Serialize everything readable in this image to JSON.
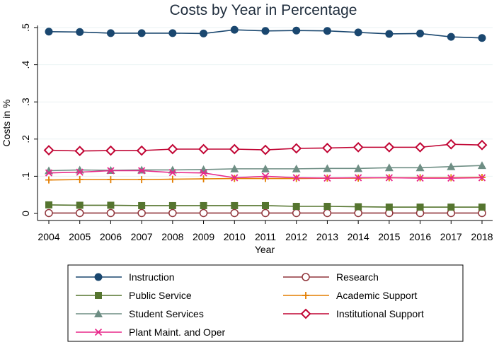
{
  "chart_data": {
    "type": "line",
    "title": "Costs by Year in Percentage",
    "xlabel": "Year",
    "ylabel": "Costs in %",
    "x": [
      "2004",
      "2005",
      "2006",
      "2007",
      "2008",
      "2009",
      "2010",
      "2011",
      "2012",
      "2013",
      "2014",
      "2015",
      "2016",
      "2017",
      "2018"
    ],
    "ylim": [
      0,
      0.5
    ],
    "yticks": [
      0,
      0.1,
      0.2,
      0.3,
      0.4,
      0.5
    ],
    "ytick_labels": [
      "0",
      ".1",
      ".2",
      ".3",
      ".4",
      ".5"
    ],
    "grid": true,
    "legend_position": "bottom",
    "series": [
      {
        "name": "Instruction",
        "color": "#1a476f",
        "marker": "filled-circle",
        "values": [
          0.489,
          0.488,
          0.485,
          0.485,
          0.485,
          0.484,
          0.494,
          0.491,
          0.492,
          0.491,
          0.487,
          0.483,
          0.484,
          0.475,
          0.472
        ]
      },
      {
        "name": "Research",
        "color": "#90353b",
        "marker": "hollow-circle",
        "values": [
          0.001,
          0.001,
          0.001,
          0.001,
          0.001,
          0.001,
          0.001,
          0.001,
          0.001,
          0.001,
          0.001,
          0.001,
          0.001,
          0.001,
          0.001
        ]
      },
      {
        "name": "Public Service",
        "color": "#55752f",
        "marker": "filled-square",
        "values": [
          0.023,
          0.022,
          0.022,
          0.021,
          0.021,
          0.021,
          0.021,
          0.021,
          0.019,
          0.019,
          0.018,
          0.017,
          0.017,
          0.017,
          0.017
        ]
      },
      {
        "name": "Academic Support",
        "color": "#e37e00",
        "marker": "plus",
        "values": [
          0.09,
          0.091,
          0.091,
          0.091,
          0.092,
          0.093,
          0.094,
          0.094,
          0.094,
          0.095,
          0.095,
          0.096,
          0.096,
          0.096,
          0.097
        ]
      },
      {
        "name": "Student Services",
        "color": "#6e8e84",
        "marker": "filled-triangle",
        "values": [
          0.115,
          0.117,
          0.116,
          0.117,
          0.117,
          0.118,
          0.12,
          0.12,
          0.12,
          0.121,
          0.121,
          0.123,
          0.123,
          0.126,
          0.129
        ]
      },
      {
        "name": "Institutional Support",
        "color": "#c10534",
        "marker": "hollow-diamond",
        "values": [
          0.17,
          0.168,
          0.169,
          0.169,
          0.173,
          0.173,
          0.173,
          0.171,
          0.175,
          0.176,
          0.178,
          0.178,
          0.178,
          0.186,
          0.184
        ]
      },
      {
        "name": "Plant Maint. and Oper",
        "color": "#e8288a",
        "marker": "x",
        "values": [
          0.109,
          0.111,
          0.115,
          0.115,
          0.11,
          0.109,
          0.096,
          0.1,
          0.096,
          0.095,
          0.096,
          0.096,
          0.095,
          0.095,
          0.096
        ]
      }
    ]
  }
}
